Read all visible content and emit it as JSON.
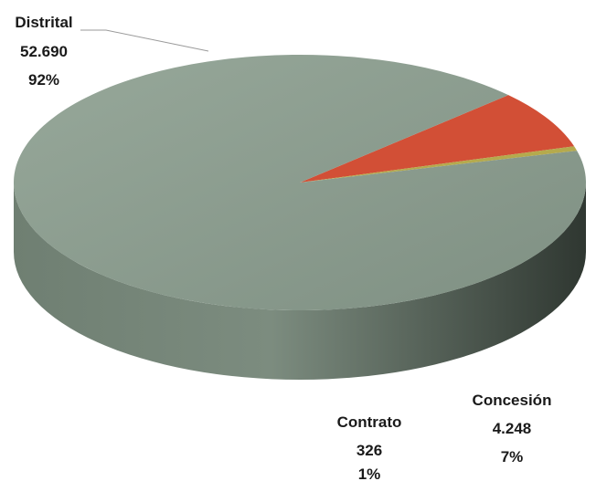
{
  "chart_data": {
    "type": "pie",
    "title": "",
    "slices": [
      {
        "name": "Distrital",
        "value": 52690,
        "value_label": "52.690",
        "percent_label": "92%",
        "color": "#8e9e91",
        "side_color": "#6e7d71"
      },
      {
        "name": "Concesión",
        "value": 4248,
        "value_label": "4.248",
        "percent_label": "7%",
        "color": "#d24f36",
        "side_color": "#7a2418"
      },
      {
        "name": "Contrato",
        "value": 326,
        "value_label": "326",
        "percent_label": "1%",
        "color": "#b5aa4d",
        "side_color": "#8f8537"
      }
    ]
  }
}
